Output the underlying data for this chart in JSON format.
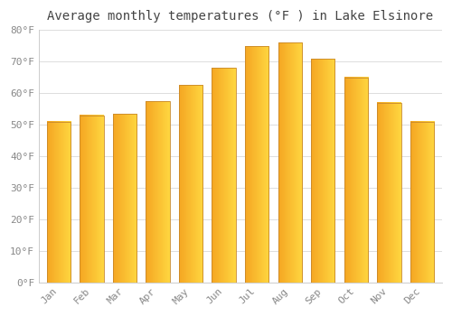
{
  "title": "Average monthly temperatures (°F ) in Lake Elsinore",
  "months": [
    "Jan",
    "Feb",
    "Mar",
    "Apr",
    "May",
    "Jun",
    "Jul",
    "Aug",
    "Sep",
    "Oct",
    "Nov",
    "Dec"
  ],
  "values": [
    51,
    53,
    53.5,
    57.5,
    62.5,
    68,
    75,
    76,
    71,
    65,
    57,
    51
  ],
  "bar_color_left": "#F5A623",
  "bar_color_right": "#FFD740",
  "bar_edge_color": "#C8882A",
  "background_color": "#FFFFFF",
  "plot_bg_color": "#FFFFFF",
  "grid_color": "#DDDDDD",
  "title_color": "#444444",
  "tick_color": "#888888",
  "ylim": [
    0,
    80
  ],
  "yticks": [
    0,
    10,
    20,
    30,
    40,
    50,
    60,
    70,
    80
  ],
  "ytick_labels": [
    "0°F",
    "10°F",
    "20°F",
    "30°F",
    "40°F",
    "50°F",
    "60°F",
    "70°F",
    "80°F"
  ],
  "title_fontsize": 10,
  "tick_fontsize": 8
}
